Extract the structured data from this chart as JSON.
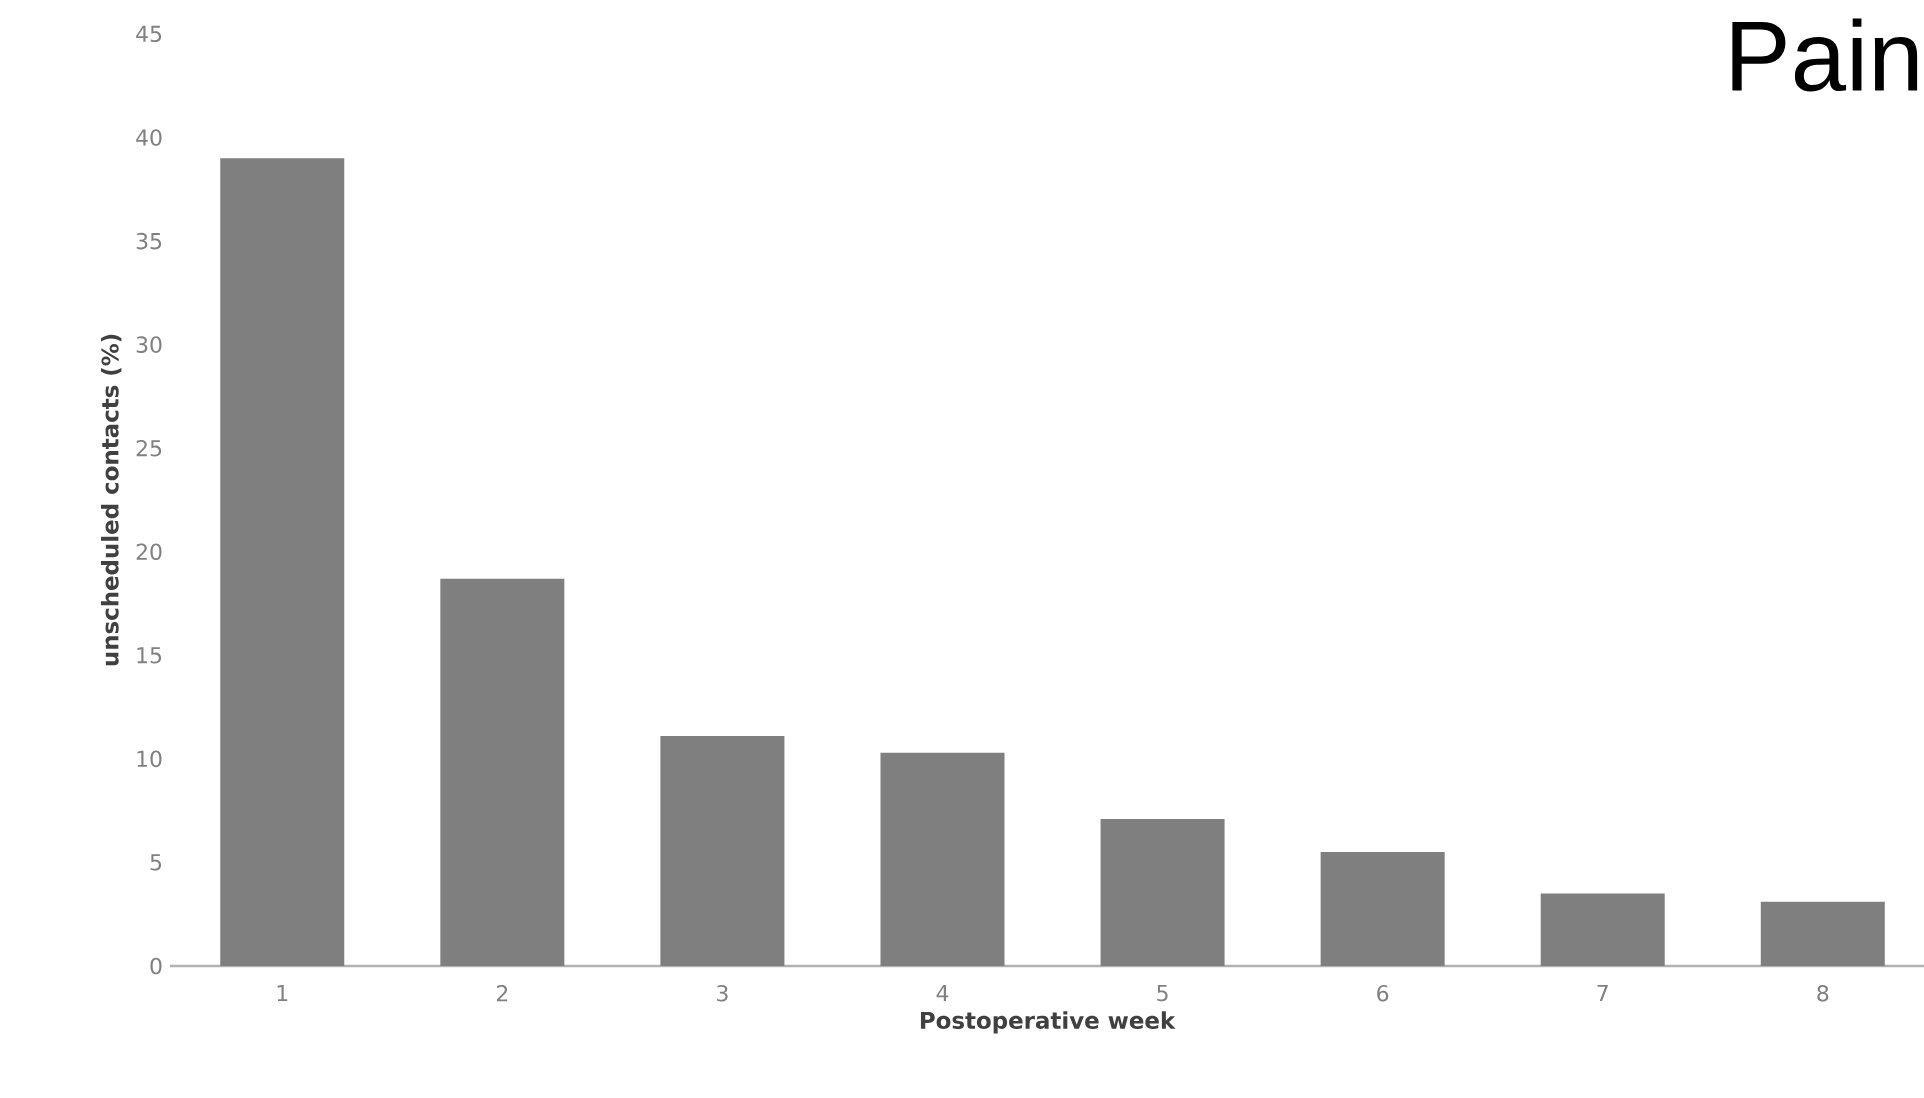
{
  "chart_data": {
    "type": "bar",
    "title": "Pain",
    "xlabel": "Postoperative week",
    "ylabel": "unscheduled contacts (%)",
    "categories": [
      "1",
      "2",
      "3",
      "4",
      "5",
      "6",
      "7",
      "8"
    ],
    "values": [
      39,
      18.7,
      11.1,
      10.3,
      7.1,
      5.5,
      3.5,
      3.1
    ],
    "color": "#7f7f7f",
    "ylim": [
      0,
      45
    ],
    "yticks": [
      0,
      5,
      10,
      15,
      20,
      25,
      30,
      35,
      40,
      45
    ],
    "grid": false
  }
}
